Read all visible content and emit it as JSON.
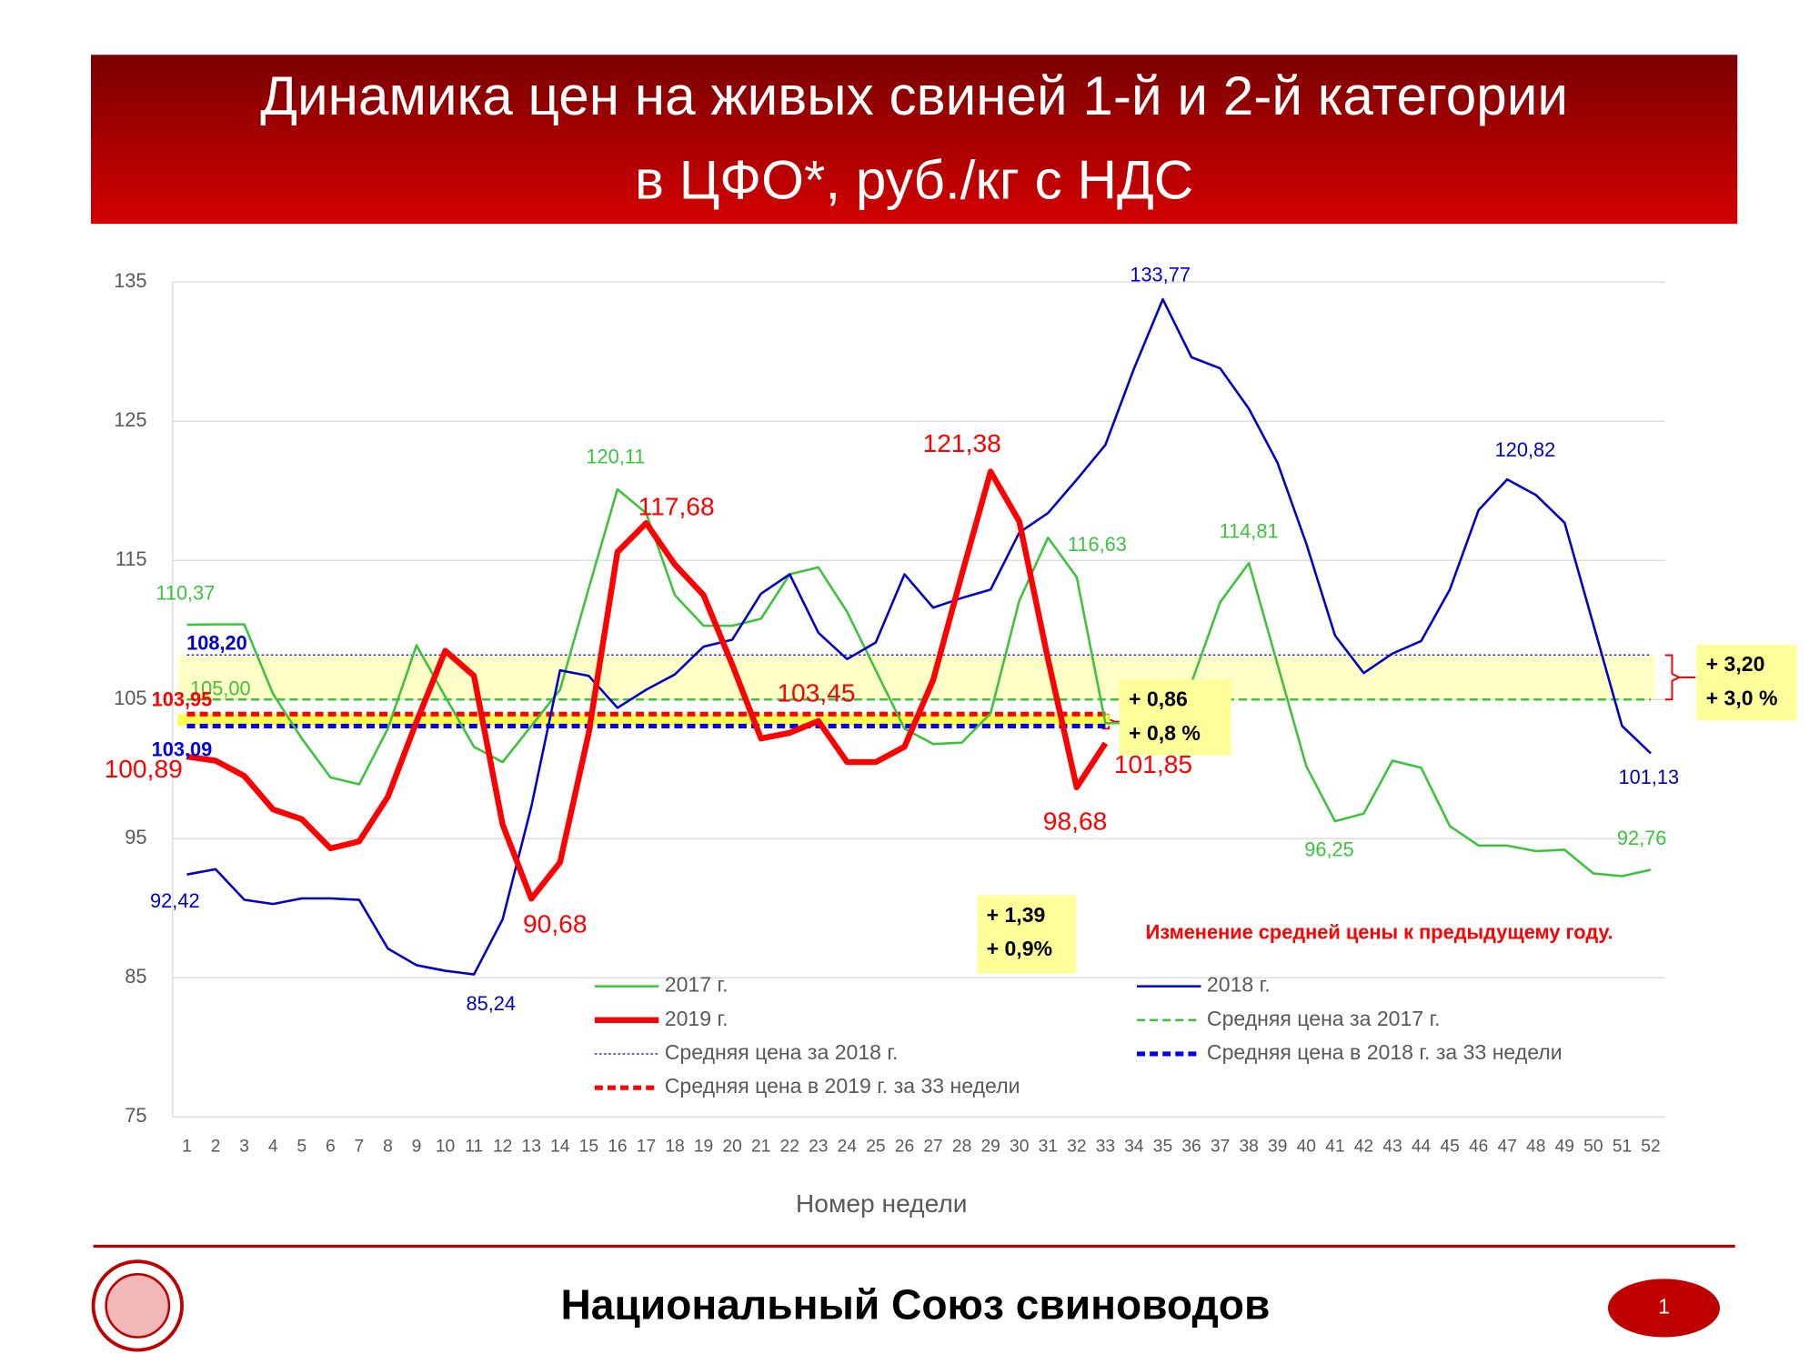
{
  "chart_data": {
    "type": "line",
    "title": [
      "Динамика цен на живых свиней 1-й и 2-й категории",
      "в ЦФО*, руб./кг с НДС"
    ],
    "x_label": "Номер недели",
    "x": [
      1,
      2,
      3,
      4,
      5,
      6,
      7,
      8,
      9,
      10,
      11,
      12,
      13,
      14,
      15,
      16,
      17,
      18,
      19,
      20,
      21,
      22,
      23,
      24,
      25,
      26,
      27,
      28,
      29,
      30,
      31,
      32,
      33,
      34,
      35,
      36,
      37,
      38,
      39,
      40,
      41,
      42,
      43,
      44,
      45,
      46,
      47,
      48,
      49,
      50,
      51,
      52
    ],
    "xlim": [
      0.5,
      52.5
    ],
    "ylim": [
      75,
      135
    ],
    "yticks": [
      75,
      85,
      95,
      105,
      115,
      125,
      135
    ],
    "grid": true,
    "series": [
      {
        "name": "2017 г.",
        "color": "#3cc33c",
        "values": [
          110.37,
          110.4,
          110.4,
          105.4,
          102.2,
          99.4,
          98.9,
          102.9,
          108.9,
          105.2,
          101.6,
          100.5,
          103.1,
          105.7,
          113.0,
          120.11,
          118.4,
          112.5,
          110.3,
          110.3,
          110.8,
          114.0,
          114.5,
          111.3,
          107.1,
          102.9,
          101.8,
          101.9,
          104.0,
          112.1,
          116.63,
          113.8,
          103.3,
          103.3,
          105.8,
          106.2,
          112.0,
          114.81,
          107.5,
          100.2,
          96.25,
          96.8,
          100.6,
          100.1,
          95.9,
          94.5,
          94.5,
          94.1,
          94.2,
          92.5,
          92.3,
          92.76
        ],
        "value_labels": [
          "110,37",
          null,
          null,
          null,
          null,
          null,
          null,
          null,
          null,
          null,
          null,
          null,
          null,
          null,
          null,
          "120,11",
          null,
          null,
          null,
          null,
          null,
          null,
          null,
          null,
          null,
          null,
          null,
          null,
          null,
          null,
          "116,63",
          null,
          null,
          null,
          null,
          null,
          null,
          "114,81",
          null,
          null,
          "96,25",
          null,
          null,
          null,
          null,
          null,
          null,
          null,
          null,
          null,
          null,
          "92,76"
        ]
      },
      {
        "name": "2018 г.",
        "color": "#0000cc",
        "values": [
          92.42,
          92.8,
          90.6,
          90.3,
          90.7,
          90.7,
          90.6,
          87.1,
          85.9,
          85.5,
          85.24,
          89.2,
          97.3,
          107.1,
          106.7,
          104.4,
          105.7,
          106.8,
          108.8,
          109.3,
          112.6,
          114.0,
          109.8,
          107.9,
          109.1,
          114.0,
          111.6,
          112.3,
          112.9,
          117.0,
          118.4,
          120.8,
          123.3,
          128.8,
          133.77,
          129.6,
          128.8,
          125.9,
          122.0,
          116.2,
          109.6,
          106.9,
          108.3,
          109.2,
          112.9,
          118.6,
          120.82,
          119.7,
          117.7,
          110.4,
          103.1,
          101.13
        ],
        "value_labels": [
          "92,42",
          null,
          null,
          null,
          null,
          null,
          null,
          null,
          null,
          null,
          "85,24",
          null,
          null,
          null,
          null,
          null,
          null,
          null,
          null,
          null,
          null,
          null,
          null,
          null,
          null,
          null,
          null,
          null,
          null,
          null,
          null,
          null,
          null,
          null,
          "133,77",
          null,
          null,
          null,
          null,
          null,
          null,
          null,
          null,
          null,
          null,
          null,
          "120,82",
          null,
          null,
          null,
          null,
          "101,13"
        ]
      },
      {
        "name": "2019 г.",
        "color": "#ff0000",
        "values": [
          100.89,
          100.6,
          99.5,
          97.1,
          96.4,
          94.3,
          94.8,
          98.0,
          103.4,
          108.5,
          106.7,
          96.0,
          90.68,
          93.3,
          102.6,
          115.6,
          117.68,
          114.7,
          112.5,
          107.5,
          102.2,
          102.6,
          103.45,
          100.5,
          100.5,
          101.6,
          106.4,
          114.0,
          121.38,
          117.8,
          107.9,
          98.68,
          101.85,
          null,
          null,
          null,
          null,
          null,
          null,
          null,
          null,
          null,
          null,
          null,
          null,
          null,
          null,
          null,
          null,
          null,
          null,
          null
        ],
        "value_labels": [
          "100,89",
          null,
          null,
          null,
          null,
          null,
          null,
          null,
          null,
          null,
          null,
          null,
          "90,68",
          null,
          null,
          null,
          "117,68",
          null,
          null,
          null,
          null,
          null,
          "103,45",
          null,
          null,
          null,
          null,
          null,
          "121,38",
          null,
          null,
          "98,68",
          "101,85",
          null,
          null,
          null,
          null,
          null,
          null,
          null,
          null,
          null,
          null,
          null,
          null,
          null,
          null,
          null,
          null,
          null,
          null,
          null
        ]
      }
    ],
    "reference_lines": [
      {
        "name": "Средняя цена за 2017 г.",
        "color": "#3cc33c",
        "style": "dashed",
        "value": 105.0,
        "value_label": "105,00",
        "x": [
          1,
          52
        ]
      },
      {
        "name": "Средняя цена за 2018 г.",
        "color": "#0000cc",
        "style": "dotted",
        "value": 108.2,
        "value_label": "108,20",
        "x": [
          1,
          52
        ]
      },
      {
        "name": "Средняя цена в 2018 г. за 33 недели",
        "color": "#0000ee",
        "style": "dashed",
        "value": 103.09,
        "value_label": "103,09",
        "x": [
          1,
          33
        ]
      },
      {
        "name": "Средняя цена в 2019 г. за 33 недели",
        "color": "#ff0000",
        "style": "dashed",
        "value": 103.95,
        "value_label": "103,95",
        "x": [
          1,
          33
        ]
      }
    ],
    "annotations": [
      {
        "lines": [
          "+ 3,20",
          "+ 3,0 %"
        ]
      },
      {
        "lines": [
          "+ 0,86",
          "+ 0,8 %"
        ]
      },
      {
        "lines": [
          "+ 1,39",
          "+ 0,9%"
        ]
      }
    ],
    "note": "Изменение средней цены к предыдущему году."
  },
  "footer": {
    "organization": "Национальный Союз свиноводов",
    "page": "1"
  }
}
